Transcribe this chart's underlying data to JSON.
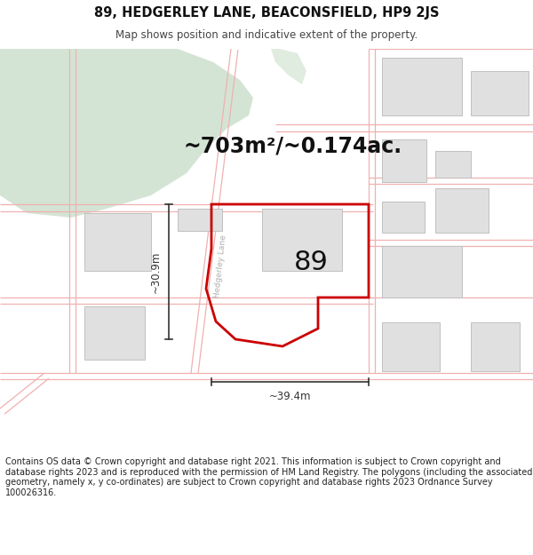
{
  "title_line1": "89, HEDGERLEY LANE, BEACONSFIELD, HP9 2JS",
  "title_line2": "Map shows position and indicative extent of the property.",
  "footer_text": "Contains OS data © Crown copyright and database right 2021. This information is subject to Crown copyright and database rights 2023 and is reproduced with the permission of HM Land Registry. The polygons (including the associated geometry, namely x, y co-ordinates) are subject to Crown copyright and database rights 2023 Ordnance Survey 100026316.",
  "area_label": "~703m²/~0.174ac.",
  "number_label": "89",
  "dim_width": "~39.4m",
  "dim_height": "~30.9m",
  "road_label": "Hedgerley Lane",
  "map_bg": "#ffffff",
  "green_color": "#d4e4d4",
  "building_fill": "#e0e0e0",
  "building_edge": "#c0c0c0",
  "road_color": "#f0b0b0",
  "road_lw": 0.9,
  "prop_color": "#cc0000",
  "prop_lw": 2.0,
  "dim_color": "#333333",
  "title_fs": 10.5,
  "sub_fs": 8.5,
  "footer_fs": 7.0,
  "area_fs": 17,
  "num_fs": 22,
  "dim_fs": 8.5,
  "road_label_fs": 6.5,
  "road_label_color": "#b0b0b0",
  "title_color": "#111111",
  "sub_color": "#444444",
  "footer_color": "#222222"
}
